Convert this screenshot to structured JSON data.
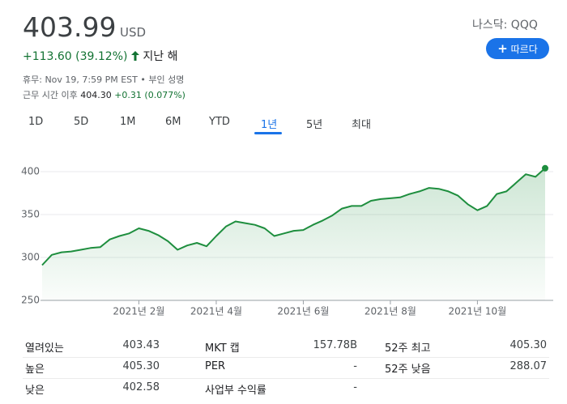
{
  "header": {
    "price": "403.99",
    "currency": "USD",
    "change": "+113.60 (39.12%)",
    "period": "지난 해",
    "exchange": "나스닥: QQQ",
    "follow": "따르다",
    "status": "휴무: Nov 19, 7:59 PM EST • 부인 성명",
    "after_hours_label": "근무 시간 이후",
    "after_hours_price": "404.30",
    "after_hours_change": "+0.31 (0.077%)"
  },
  "tabs": [
    "1D",
    "5D",
    "1M",
    "6M",
    "YTD",
    "1년",
    "5년",
    "최대"
  ],
  "chart_data": {
    "type": "line",
    "color": "#1e8e3e",
    "categories": [
      null,
      null,
      null,
      null,
      null,
      null,
      null,
      null,
      null,
      null,
      "2021년 2월",
      null,
      null,
      null,
      null,
      null,
      null,
      null,
      "2021년 4월",
      null,
      null,
      null,
      null,
      null,
      null,
      null,
      null,
      "2021년 6월",
      null,
      null,
      null,
      null,
      null,
      null,
      null,
      null,
      "2021년 8월",
      null,
      null,
      null,
      null,
      null,
      null,
      null,
      null,
      "2021년 10월",
      null,
      null,
      null,
      null,
      null,
      null,
      null
    ],
    "values": [
      291,
      303,
      306,
      307,
      309,
      311,
      312,
      321,
      325,
      328,
      334,
      331,
      326,
      319,
      309,
      314,
      317,
      313,
      325,
      336,
      342,
      340,
      338,
      334,
      325,
      328,
      331,
      332,
      338,
      343,
      349,
      357,
      360,
      360,
      366,
      368,
      369,
      370,
      374,
      377,
      381,
      380,
      377,
      372,
      362,
      355,
      360,
      374,
      377,
      387,
      397,
      394,
      403.99
    ],
    "ylim": [
      250,
      420
    ],
    "yticks": [
      250,
      300,
      350,
      400
    ],
    "grid": true
  },
  "stats": [
    [
      "열려있는",
      "403.43",
      "MKT 캡",
      "157.78B",
      "52주 최고",
      "405.30"
    ],
    [
      "높은",
      "405.30",
      "PER",
      "-",
      "52주 낮음",
      "288.07"
    ],
    [
      "낮은",
      "402.58",
      "사업부 수익률",
      "-",
      "",
      ""
    ]
  ]
}
